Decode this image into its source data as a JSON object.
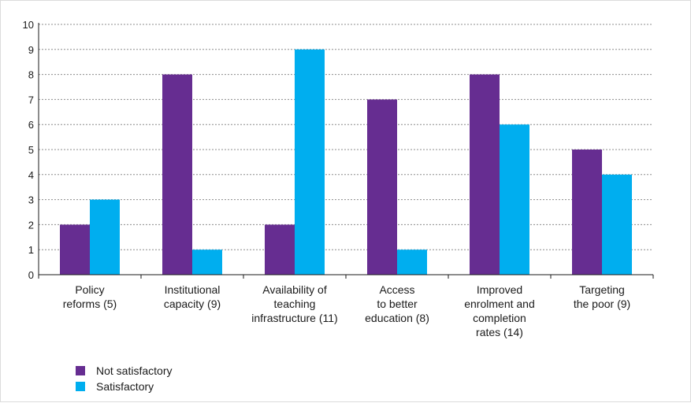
{
  "chart_data": {
    "type": "bar",
    "categories": [
      "Policy\nreforms (5)",
      "Institutional\ncapacity (9)",
      "Availability of\nteaching\ninfrastructure (11)",
      "Access\nto better\neducation (8)",
      "Improved\nenrolment and\ncompletion\nrates (14)",
      "Targeting\nthe poor (9)"
    ],
    "series": [
      {
        "name": "Not satisfactory",
        "color": "#662d91",
        "values": [
          2,
          8,
          2,
          7,
          8,
          5
        ]
      },
      {
        "name": "Satisfactory",
        "color": "#00aeef",
        "values": [
          3,
          1,
          9,
          1,
          6,
          4
        ]
      }
    ],
    "ylim": [
      0,
      10
    ],
    "yticks": [
      0,
      1,
      2,
      3,
      4,
      5,
      6,
      7,
      8,
      9,
      10
    ],
    "grid": "dotted horizontal",
    "legend_position": "bottom-left"
  }
}
